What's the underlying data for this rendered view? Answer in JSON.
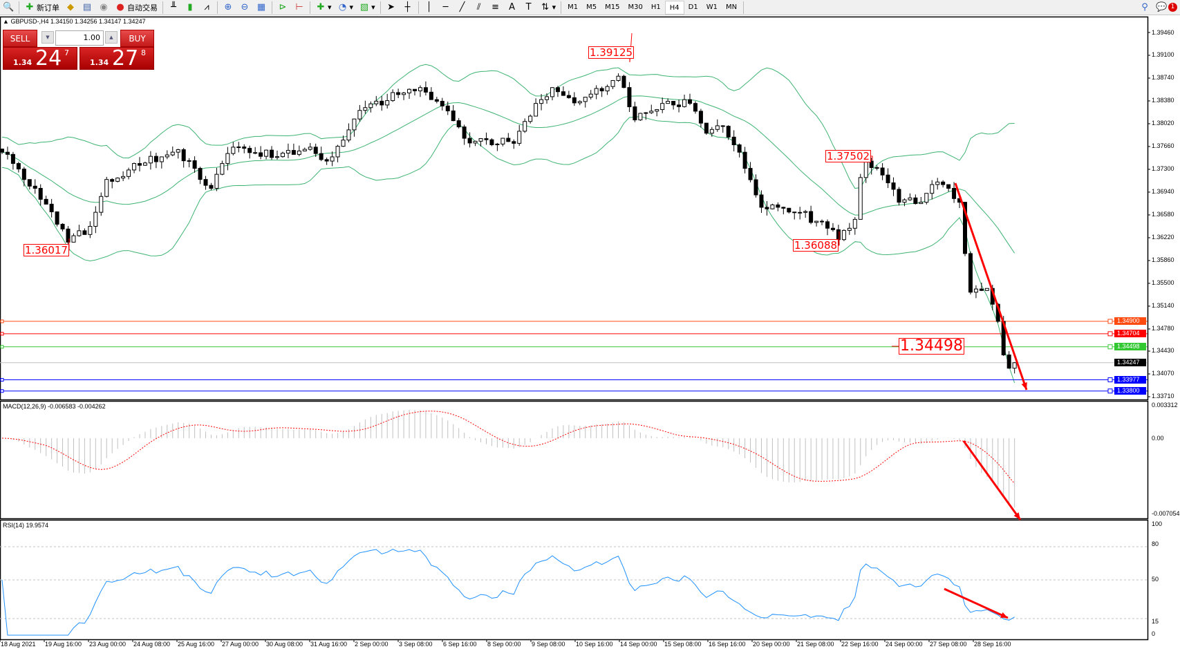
{
  "toolbar": {
    "new_order": "新订单",
    "auto_trading": "自动交易",
    "timeframes": [
      "M1",
      "M5",
      "M15",
      "M30",
      "H1",
      "H4",
      "D1",
      "W1",
      "MN"
    ],
    "active_timeframe": "H4",
    "notification_count": "1"
  },
  "chart": {
    "header": "GBPUSD-,H4  1.34150 1.34256 1.34147 1.34247",
    "symbol": "GBPUSD-",
    "timeframe": "H4",
    "ohlc": {
      "open": 1.3415,
      "high": 1.34256,
      "low": 1.34147,
      "close": 1.34247
    }
  },
  "trade_panel": {
    "sell_label": "SELL",
    "buy_label": "BUY",
    "lot": "1.00",
    "sell_prefix": "1.34",
    "sell_big": "24",
    "sell_sup": "7",
    "buy_prefix": "1.34",
    "buy_big": "27",
    "buy_sup": "8"
  },
  "price_axis": [
    "1.39460",
    "1.39100",
    "1.38740",
    "1.38380",
    "1.38020",
    "1.37660",
    "1.37300",
    "1.36940",
    "1.36580",
    "1.36220",
    "1.35860",
    "1.35500",
    "1.35140",
    "1.34780",
    "1.34430",
    "1.34070",
    "1.33710"
  ],
  "horizontal_lines": [
    {
      "label": "1.34900",
      "price": 1.349,
      "color": "#ff4a10"
    },
    {
      "label": "1.34704",
      "price": 1.34704,
      "color": "#ff0000"
    },
    {
      "label": "1.34498",
      "price": 1.34498,
      "color": "#32c832"
    },
    {
      "label": "1.34247",
      "price": 1.34247,
      "color": "#000000",
      "line_color": "#c0c0c0"
    },
    {
      "label": "1.33977",
      "price": 1.33977,
      "color": "#0000ff"
    },
    {
      "label": "1.33800",
      "price": 1.338,
      "color": "#0000ff"
    }
  ],
  "annotations": [
    "1.39125",
    "1.36017",
    "1.37502",
    "1.36088",
    "1.34498"
  ],
  "macd": {
    "header": "MACD(12,26,9) -0.006583 -0.004262",
    "axis": [
      "0.003312",
      "0.00",
      "-0.007054"
    ],
    "hist_color": "#c0c0c0",
    "signal_color": "#ff0000"
  },
  "rsi": {
    "header": "RSI(14) 19.9574",
    "axis": [
      "100",
      "80",
      "50",
      "15",
      "0"
    ],
    "line_color": "#1e90ff"
  },
  "time_axis": [
    "18 Aug 2021",
    "19 Aug 16:00",
    "23 Aug 00:00",
    "24 Aug 08:00",
    "25 Aug 16:00",
    "27 Aug 00:00",
    "30 Aug 08:00",
    "31 Aug 16:00",
    "2 Sep 00:00",
    "3 Sep 08:00",
    "6 Sep 16:00",
    "8 Sep 00:00",
    "9 Sep 08:00",
    "10 Sep 16:00",
    "14 Sep 00:00",
    "15 Sep 08:00",
    "16 Sep 16:00",
    "20 Sep 00:00",
    "21 Sep 08:00",
    "22 Sep 16:00",
    "24 Sep 00:00",
    "27 Sep 08:00",
    "28 Sep 16:00"
  ],
  "chart_data": {
    "type": "candlestick",
    "indicators": [
      "Bollinger Bands(20,2)",
      "MACD(12,26,9)",
      "RSI(14)"
    ],
    "band_color": "#3cb371",
    "close_waypoints": [
      [
        0,
        1.3757
      ],
      [
        6,
        1.37
      ],
      [
        12,
        1.3615
      ],
      [
        16,
        1.364
      ],
      [
        19,
        1.3714
      ],
      [
        26,
        1.374
      ],
      [
        32,
        1.3761
      ],
      [
        36,
        1.3714
      ],
      [
        38,
        1.37
      ],
      [
        42,
        1.3765
      ],
      [
        50,
        1.375
      ],
      [
        56,
        1.3765
      ],
      [
        59,
        1.3743
      ],
      [
        65,
        1.3823
      ],
      [
        72,
        1.3848
      ],
      [
        76,
        1.3859
      ],
      [
        80,
        1.383
      ],
      [
        84,
        1.3779
      ],
      [
        93,
        1.3771
      ],
      [
        97,
        1.3834
      ],
      [
        100,
        1.3859
      ],
      [
        105,
        1.3837
      ],
      [
        112,
        1.3877
      ],
      [
        115,
        1.3808
      ],
      [
        120,
        1.3834
      ],
      [
        125,
        1.3834
      ],
      [
        128,
        1.3787
      ],
      [
        131,
        1.3798
      ],
      [
        134,
        1.3757
      ],
      [
        138,
        1.367
      ],
      [
        145,
        1.3662
      ],
      [
        150,
        1.3637
      ],
      [
        152,
        1.3619
      ],
      [
        155,
        1.3651
      ],
      [
        156,
        1.3717
      ],
      [
        157,
        1.3743
      ],
      [
        160,
        1.3721
      ],
      [
        163,
        1.3678
      ],
      [
        167,
        1.3678
      ],
      [
        170,
        1.371
      ],
      [
        172,
        1.37
      ],
      [
        174,
        1.3678
      ],
      [
        175,
        1.3597
      ],
      [
        176,
        1.3536
      ],
      [
        179,
        1.3542
      ],
      [
        180,
        1.3517
      ],
      [
        181,
        1.349
      ],
      [
        182,
        1.3437
      ],
      [
        183,
        1.3416
      ],
      [
        184,
        1.34247
      ]
    ],
    "ylim": [
      1.3371,
      1.3946
    ]
  }
}
